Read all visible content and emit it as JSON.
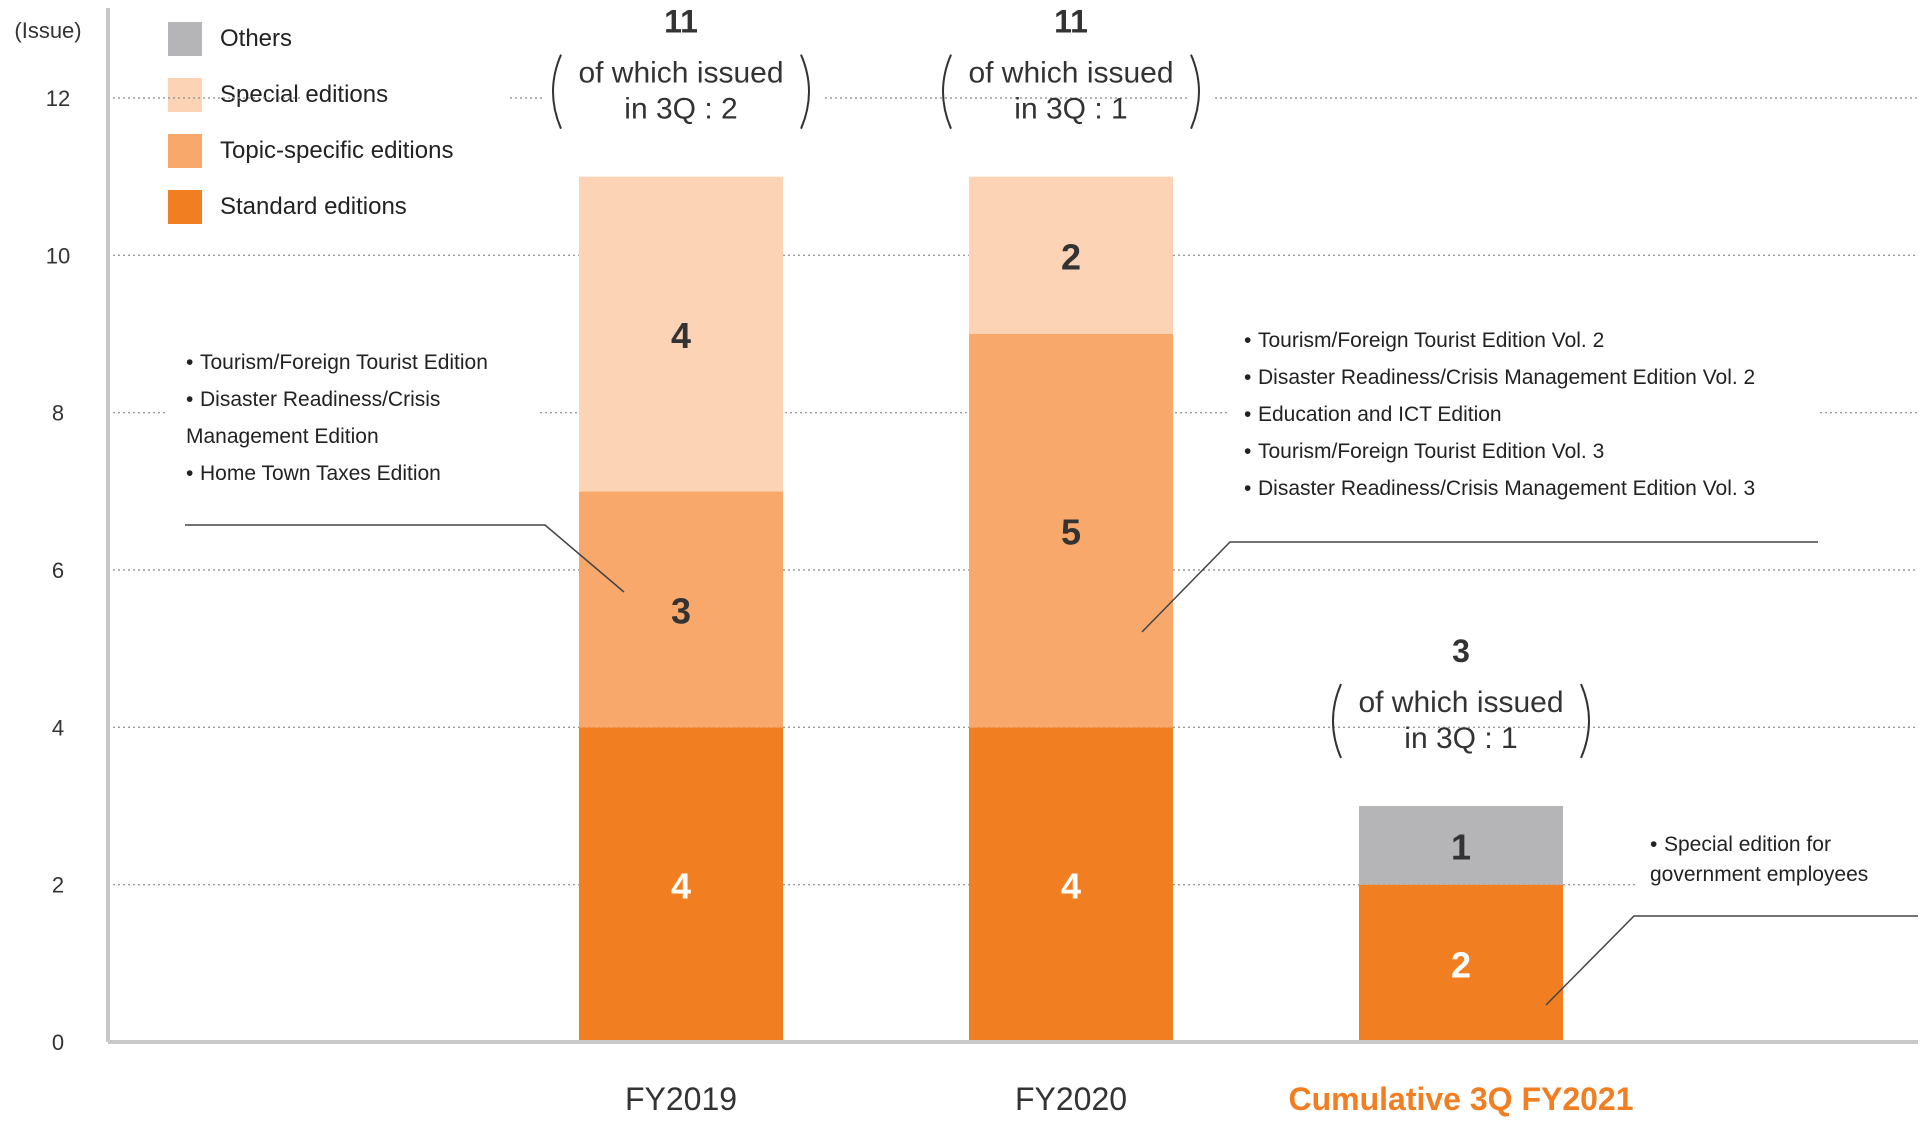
{
  "chart_data": {
    "type": "bar",
    "stacked": true,
    "y_unit_label": "(Issue)",
    "ylim": [
      0,
      12
    ],
    "y_ticks": [
      0,
      2,
      4,
      6,
      8,
      10,
      12
    ],
    "grid": "dotted horizontal",
    "categories": [
      "FY2019",
      "FY2020",
      "Cumulative 3Q FY2021"
    ],
    "highlight_category": "Cumulative 3Q FY2021",
    "series": [
      {
        "name": "Standard editions",
        "color": "#f27e22",
        "values": [
          4,
          4,
          2
        ]
      },
      {
        "name": "Topic-specific editions",
        "color": "#f8a86a",
        "values": [
          3,
          5,
          0
        ]
      },
      {
        "name": "Special editions",
        "color": "#fcd4b5",
        "values": [
          4,
          2,
          0
        ]
      },
      {
        "name": "Others",
        "color": "#b5b5b8",
        "values": [
          0,
          0,
          1
        ]
      }
    ],
    "totals": [
      {
        "total": "11",
        "line1": "of which issued",
        "line2": "in 3Q : 2"
      },
      {
        "total": "11",
        "line1": "of which issued",
        "line2": "in 3Q : 1"
      },
      {
        "total": "3",
        "line1": "of which issued",
        "line2": "in 3Q : 1"
      }
    ],
    "legend_placement": "top-left"
  },
  "legend": [
    {
      "label": "Others",
      "color": "#b5b5b8"
    },
    {
      "label": "Special editions",
      "color": "#fcd4b5"
    },
    {
      "label": "Topic-specific editions",
      "color": "#f8a86a"
    },
    {
      "label": "Standard editions",
      "color": "#f27e22"
    }
  ],
  "annotations": {
    "fy2019_topic": [
      "Tourism/Foreign Tourist Edition",
      "Disaster Readiness/Crisis",
      "Management Edition",
      "Home Town Taxes Edition"
    ],
    "fy2020_topic": [
      "Tourism/Foreign Tourist Edition Vol. 2",
      "Disaster Readiness/Crisis Management Edition Vol. 2",
      "Education and ICT Edition",
      "Tourism/Foreign Tourist Edition Vol. 3",
      "Disaster Readiness/Crisis Management Edition Vol. 3"
    ],
    "fy2021_others": [
      "Special edition for",
      "government employees"
    ]
  },
  "colors": {
    "axis": "#c8c8c8",
    "grid": "#9a9a9a",
    "text": "#333333",
    "highlight": "#f27e22",
    "segment_label_light": "#ffffff",
    "segment_label_dark": "#333333"
  }
}
